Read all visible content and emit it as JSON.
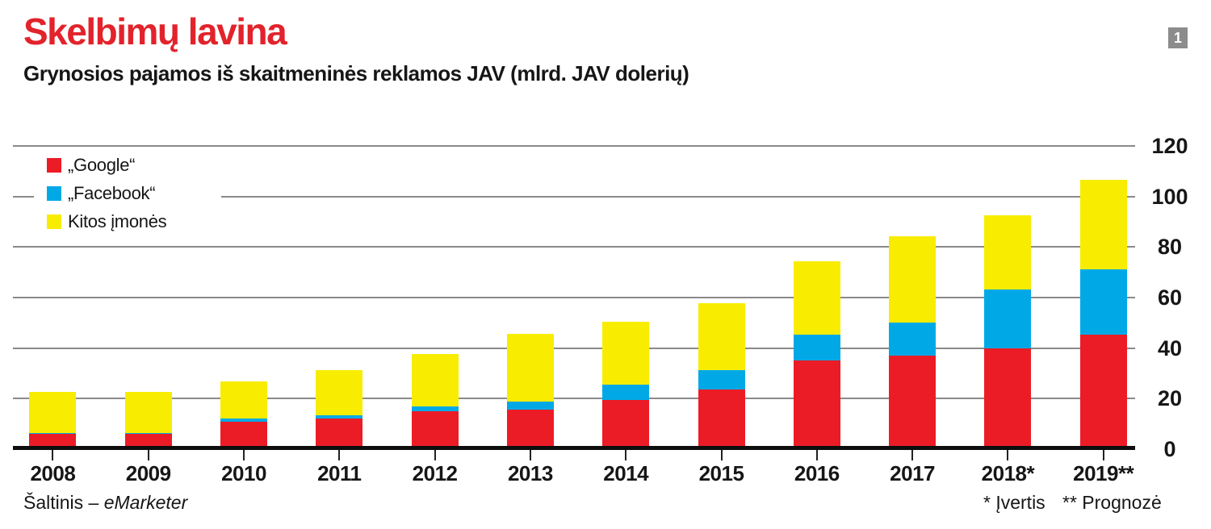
{
  "header": {
    "title": "Skelbimų lavina",
    "subtitle": "Grynosios pajamos iš skaitmeninės reklamos JAV (mlrd. JAV dolerių)",
    "badge": "1"
  },
  "chart_data": {
    "type": "bar",
    "stacked": true,
    "categories": [
      "2008",
      "2009",
      "2010",
      "2011",
      "2012",
      "2013",
      "2014",
      "2015",
      "2016",
      "2017",
      "2018*",
      "2019**"
    ],
    "series": [
      {
        "name": "„Google“",
        "color": "#ec1c26",
        "values": [
          6.0,
          6.0,
          10.8,
          12.2,
          15.1,
          15.5,
          19.3,
          23.7,
          35.0,
          37.0,
          40.0,
          45.2
        ]
      },
      {
        "name": "„Facebook“",
        "color": "#00a9e6",
        "values": [
          0.4,
          0.4,
          1.2,
          1.2,
          1.9,
          3.4,
          6.3,
          7.5,
          10.3,
          13.2,
          23.2,
          26.0
        ]
      },
      {
        "name": "Kitos įmonės",
        "color": "#f8ec00",
        "values": [
          16.4,
          16.2,
          14.7,
          17.8,
          20.5,
          26.8,
          24.7,
          26.4,
          28.9,
          33.9,
          29.2,
          35.5
        ]
      }
    ],
    "title": "Skelbimų lavina",
    "subtitle": "Grynosios pajamos iš skaitmeninės reklamos JAV (mlrd. JAV dolerių)",
    "xlabel": "",
    "ylabel": "mlrd. JAV dolerių",
    "ylim": [
      0,
      120
    ],
    "yticks": [
      0,
      20,
      40,
      60,
      80,
      100,
      120
    ],
    "grid": true,
    "legend_position": "top-left",
    "gridline_color": "#8a8a8a",
    "axis_color": "#0d0d0d"
  },
  "footer": {
    "source_prefix": "Šaltinis – ",
    "source_name": "eMarketer",
    "note_estimate": "* Įvertis",
    "note_forecast": "** Prognozė"
  }
}
